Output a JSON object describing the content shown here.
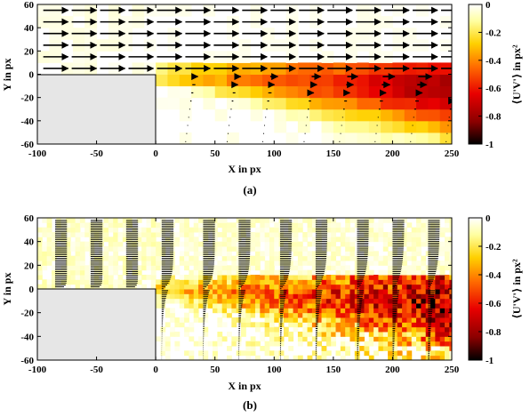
{
  "figure": {
    "colorbar_label": "⟨U'V'⟩ in px²",
    "colorbar_ticks": [
      "0",
      "-0.2",
      "-0.4",
      "-0.6",
      "-0.8",
      "-1"
    ],
    "colormap": [
      "#000000",
      "#8b0000",
      "#e80000",
      "#ff6a00",
      "#ffd000",
      "#ffffa0",
      "#ffffff"
    ]
  },
  "chart_data": [
    {
      "type": "heatmap",
      "panel": "(a)",
      "xlabel": "X in px",
      "ylabel": "Y in px",
      "xlim": [
        -100,
        250
      ],
      "ylim": [
        -60,
        60
      ],
      "xticks": [
        "-100",
        "-50",
        "0",
        "50",
        "100",
        "150",
        "200",
        "250"
      ],
      "yticks": [
        "60",
        "40",
        "20",
        "0",
        "-20",
        "-40",
        "-60"
      ],
      "obstacle": {
        "x": [
          -100,
          0
        ],
        "y": [
          -60,
          0
        ]
      },
      "colorbar_range": [
        -1,
        0
      ],
      "field_summary": "Reynolds shear stress near zero above Y=0 and upstream; negative region grows downstream along the shear layer, minimum about -0.75 near X=200..240, Y=-10..-20",
      "vector_profiles_x": [
        25,
        60,
        90,
        125,
        155,
        185,
        215,
        245
      ],
      "vector_rows_above_y": [
        5,
        15,
        25,
        35,
        45,
        55
      ],
      "vector_spacing_above": 24,
      "caption": "(a)"
    },
    {
      "type": "heatmap",
      "panel": "(b)",
      "xlabel": "X in px",
      "ylabel": "Y in px",
      "xlim": [
        -100,
        250
      ],
      "ylim": [
        -60,
        60
      ],
      "xticks": [
        "-100",
        "-50",
        "0",
        "50",
        "100",
        "150",
        "200",
        "250"
      ],
      "yticks": [
        "60",
        "40",
        "20",
        "0",
        "-20",
        "-40",
        "-60"
      ],
      "obstacle": {
        "x": [
          -100,
          0
        ],
        "y": [
          -60,
          0
        ]
      },
      "colorbar_range": [
        -1,
        0
      ],
      "field_summary": "Noisy high-resolution field; near zero upstream, strong negative shear layer starting at X=0 along Y=0 and spreading downward with X, minima about -0.9",
      "vector_profiles_x": [
        -85,
        -55,
        -25,
        5,
        40,
        70,
        105,
        135,
        170,
        200,
        230
      ],
      "caption": "(b)"
    }
  ]
}
